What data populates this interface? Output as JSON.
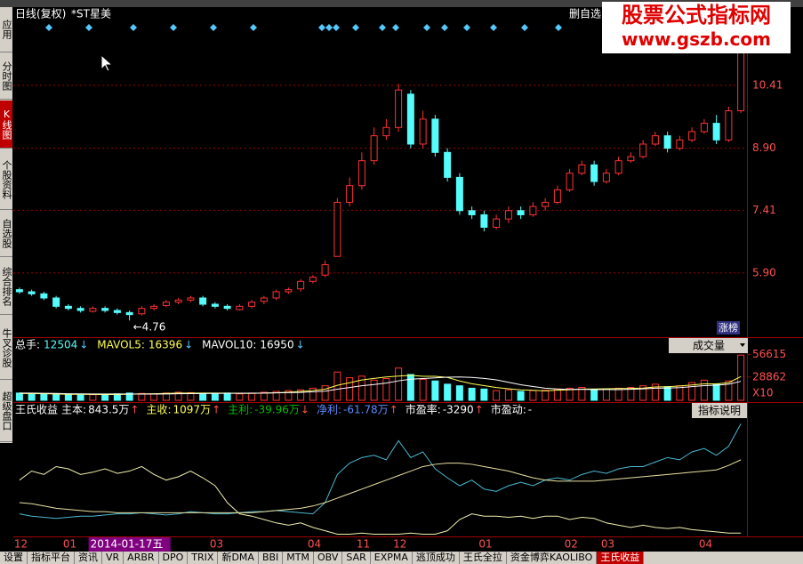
{
  "window": {
    "sidebar_tabs": [
      "应用",
      "分时图",
      "K线图",
      "个股资料",
      "自选股",
      "综合排名",
      "牛叉诊股",
      "超级盘口"
    ],
    "active_sidebar_tab": "K线图",
    "bottom_tabs": [
      "设置",
      "指标平台",
      "资讯",
      "VR",
      "ARBR",
      "DPO",
      "TRIX",
      "新DMA",
      "BBI",
      "MTM",
      "OBV",
      "SAR",
      "EXPMA",
      "逃顶成功",
      "王氏全拉",
      "资金博弈KAOLIBO",
      "王氏收益"
    ],
    "active_bottom_tab": "王氏收益",
    "watermark": {
      "title": "股票公式指标网",
      "url": "www.gszb.com"
    },
    "remove_button": "删自选",
    "selected_date": "2014-01-17五"
  },
  "chart_data": [
    {
      "type": "candlestick",
      "title": "日线(复权)",
      "subtitle": "*ST星美",
      "categories": [
        "12",
        null,
        null,
        null,
        "01",
        null,
        null,
        null,
        null,
        null,
        null,
        null,
        null,
        null,
        null,
        null,
        "03",
        null,
        null,
        null,
        null,
        null,
        null,
        null,
        "04",
        null,
        null,
        null,
        "11",
        null,
        null,
        "12",
        null,
        null,
        null,
        null,
        null,
        null,
        "01",
        null,
        null,
        null,
        null,
        null,
        null,
        "02",
        null,
        null,
        "03",
        null,
        null,
        null,
        null,
        null,
        null,
        null,
        "04",
        null,
        null,
        null
      ],
      "open": [
        5.5,
        5.45,
        5.4,
        5.3,
        5.1,
        5.05,
        4.98,
        5.05,
        5.0,
        4.95,
        4.92,
        5.05,
        5.12,
        5.2,
        5.25,
        5.3,
        5.15,
        5.1,
        5.02,
        5.1,
        5.22,
        5.3,
        5.45,
        5.52,
        5.7,
        5.85,
        6.3,
        7.6,
        8.0,
        8.6,
        9.2,
        9.4,
        10.2,
        9.0,
        9.6,
        8.8,
        8.2,
        7.4,
        7.3,
        7.0,
        7.2,
        7.4,
        7.3,
        7.5,
        7.6,
        7.9,
        8.3,
        8.5,
        8.1,
        8.3,
        8.6,
        8.7,
        9.0,
        9.2,
        8.9,
        9.1,
        9.3,
        9.5,
        9.1,
        9.8
      ],
      "high": [
        5.55,
        5.5,
        5.45,
        5.35,
        5.15,
        5.1,
        5.1,
        5.1,
        5.05,
        5.0,
        5.1,
        5.15,
        5.25,
        5.3,
        5.35,
        5.35,
        5.2,
        5.15,
        5.15,
        5.25,
        5.35,
        5.5,
        5.55,
        5.75,
        5.85,
        6.2,
        7.7,
        8.2,
        8.8,
        9.4,
        9.6,
        10.45,
        10.3,
        9.8,
        9.7,
        8.9,
        8.3,
        7.5,
        7.4,
        7.3,
        7.5,
        7.5,
        7.6,
        7.7,
        8.0,
        8.4,
        8.6,
        8.6,
        8.4,
        8.7,
        8.8,
        9.1,
        9.3,
        9.3,
        9.2,
        9.4,
        9.6,
        9.7,
        9.9,
        11.7
      ],
      "low": [
        5.4,
        5.35,
        5.25,
        5.05,
        5.0,
        4.95,
        4.95,
        4.95,
        4.9,
        4.76,
        4.88,
        5.0,
        5.08,
        5.15,
        5.2,
        5.1,
        5.05,
        5.0,
        5.0,
        5.05,
        5.15,
        5.25,
        5.4,
        5.45,
        5.65,
        5.8,
        6.3,
        7.5,
        7.9,
        8.5,
        9.1,
        9.3,
        8.9,
        8.9,
        8.7,
        8.1,
        7.3,
        7.2,
        6.9,
        6.95,
        7.1,
        7.2,
        7.25,
        7.4,
        7.55,
        7.85,
        8.25,
        8.0,
        8.05,
        8.25,
        8.55,
        8.65,
        8.95,
        8.8,
        8.85,
        9.05,
        9.25,
        9.0,
        9.05,
        9.75
      ],
      "close": [
        5.45,
        5.4,
        5.3,
        5.1,
        5.05,
        5.0,
        5.05,
        5.0,
        4.95,
        4.9,
        5.05,
        5.1,
        5.2,
        5.25,
        5.3,
        5.15,
        5.1,
        5.05,
        5.1,
        5.2,
        5.3,
        5.45,
        5.5,
        5.7,
        5.8,
        6.1,
        7.6,
        8.0,
        8.6,
        9.2,
        9.4,
        10.3,
        9.0,
        9.6,
        8.8,
        8.2,
        7.4,
        7.3,
        7.0,
        7.2,
        7.4,
        7.3,
        7.5,
        7.6,
        7.9,
        8.3,
        8.5,
        8.1,
        8.3,
        8.6,
        8.7,
        9.0,
        9.2,
        8.9,
        9.1,
        9.3,
        9.5,
        9.1,
        9.8,
        11.5
      ],
      "up_color": "#ff3232",
      "down_color": "#54fcfc",
      "ylim": [
        4.38,
        12.25
      ],
      "yticks": [
        {
          "value": 5.9,
          "label": "5.90"
        },
        7.41,
        {
          "value": 8.9,
          "label": "8.90"
        },
        10.41
      ],
      "grid": true,
      "annotations": [
        {
          "text": "←4.76"
        },
        {
          "text": "涨榜"
        }
      ]
    },
    {
      "type": "bar",
      "title": "成交量",
      "stats": [
        {
          "label": "总手:",
          "value": 12504,
          "arrow": "↓",
          "color": "#54fcfc"
        },
        {
          "label": "MAVOL5:",
          "value": 16396,
          "arrow": "↓",
          "color": "#ffff54"
        },
        {
          "label": "MAVOL10:",
          "value": 16950,
          "arrow": "↓",
          "color": "#ffffff"
        }
      ],
      "values": [
        9000,
        8000,
        7500,
        8000,
        7000,
        6500,
        7000,
        7500,
        8000,
        9000,
        8500,
        8000,
        9000,
        10000,
        9500,
        8000,
        8500,
        9000,
        8000,
        9000,
        10000,
        11000,
        12000,
        13000,
        15000,
        18000,
        35000,
        28000,
        30000,
        25000,
        27000,
        40000,
        32000,
        26000,
        24000,
        20000,
        18000,
        15000,
        14000,
        12000,
        13000,
        11000,
        12000,
        12500,
        14000,
        15000,
        16000,
        13000,
        14000,
        15000,
        16000,
        18000,
        20000,
        17000,
        18000,
        22000,
        25000,
        20000,
        24000,
        56000
      ],
      "lines": [
        {
          "color": "#ffff54",
          "values": [
            8500,
            8300,
            8100,
            7900,
            7500,
            7400,
            7300,
            7200,
            7200,
            7600,
            8000,
            8200,
            8500,
            8900,
            9000,
            8900,
            8900,
            8800,
            8600,
            8500,
            8900,
            9400,
            10000,
            11000,
            12200,
            13800,
            18600,
            21800,
            25200,
            27200,
            29000,
            30000,
            31000,
            29800,
            29800,
            28400,
            24000,
            20600,
            18200,
            15800,
            14400,
            13000,
            12400,
            11700,
            12500,
            13100,
            13900,
            14100,
            14400,
            14600,
            14800,
            15200,
            16600,
            16800,
            17800,
            19000,
            20400,
            20400,
            21800,
            29400
          ]
        },
        {
          "color": "#ffffff",
          "values": [
            9000,
            8900,
            8700,
            8500,
            8200,
            8000,
            7900,
            7800,
            7800,
            7800,
            7700,
            7700,
            7800,
            8100,
            8300,
            8400,
            8600,
            8700,
            8800,
            8800,
            8900,
            9200,
            9500,
            9800,
            10600,
            11300,
            13800,
            15900,
            18100,
            19600,
            21400,
            24200,
            26200,
            27000,
            27800,
            28700,
            29000,
            28400,
            27200,
            25400,
            22300,
            19300,
            17100,
            15000,
            14000,
            13500,
            13600,
            13300,
            13400,
            13300,
            13700,
            14200,
            15000,
            15200,
            15700,
            16900,
            18200,
            18700,
            20000,
            23500
          ]
        }
      ],
      "ylim": [
        0,
        75000
      ],
      "yticks": [
        28862,
        56615
      ],
      "unit": "X10"
    },
    {
      "type": "line",
      "title": "王氏收益",
      "stats": [
        {
          "label": "主本:",
          "value": "843.5万",
          "arrow": "↑",
          "color": "#ffffff"
        },
        {
          "label": "主收:",
          "value": "1097万",
          "arrow": "↑",
          "color": "#ffff54"
        },
        {
          "label": "主利:",
          "value": "-39.96万",
          "arrow": "↓",
          "color": "#00c000"
        },
        {
          "label": "净利:",
          "value": "-61.78万",
          "arrow": "↑",
          "color": "#5a8cff"
        },
        {
          "label": "市盈率:",
          "value": "-3290",
          "arrow": "↑",
          "color": "#ffffff"
        },
        {
          "label": "市盈动:",
          "value": "-",
          "arrow": "",
          "color": "#ffffff"
        }
      ],
      "button": "指标说明",
      "series": [
        {
          "color": "#f0f0b0",
          "values": [
            50,
            58,
            55,
            62,
            60,
            55,
            57,
            60,
            56,
            58,
            62,
            55,
            50,
            53,
            58,
            52,
            45,
            30,
            20,
            18,
            15,
            12,
            10,
            12,
            8,
            5,
            2,
            2,
            3,
            2,
            2,
            2,
            3,
            2,
            2,
            5,
            15,
            20,
            18,
            18,
            17,
            18,
            16,
            18,
            18,
            15,
            17,
            16,
            12,
            10,
            8,
            10,
            8,
            7,
            8,
            6,
            5,
            4,
            3,
            3
          ]
        },
        {
          "color": "#4ab8d0",
          "values": [
            20,
            18,
            17,
            16,
            17,
            18,
            18,
            19,
            20,
            20,
            21,
            20,
            19,
            20,
            22,
            21,
            20,
            20,
            21,
            22,
            22,
            23,
            22,
            21,
            20,
            30,
            55,
            65,
            70,
            72,
            68,
            85,
            70,
            75,
            60,
            52,
            45,
            50,
            42,
            40,
            45,
            48,
            45,
            50,
            52,
            50,
            55,
            58,
            56,
            60,
            62,
            62,
            66,
            70,
            68,
            75,
            78,
            72,
            80,
            100
          ]
        },
        {
          "color": "#e8e0a0",
          "values": [
            30,
            29,
            27,
            25,
            24,
            23,
            22,
            22,
            21,
            21,
            21,
            21,
            21,
            21,
            21,
            21,
            21,
            21,
            21,
            21,
            22,
            23,
            24,
            25,
            27,
            30,
            34,
            38,
            42,
            46,
            50,
            54,
            58,
            62,
            64,
            65,
            65,
            64,
            62,
            60,
            58,
            55,
            52,
            50,
            49,
            49,
            49,
            49,
            50,
            51,
            52,
            53,
            54,
            55,
            56,
            57,
            58,
            59,
            63,
            68
          ]
        }
      ],
      "ylim": [
        0,
        105
      ]
    }
  ]
}
